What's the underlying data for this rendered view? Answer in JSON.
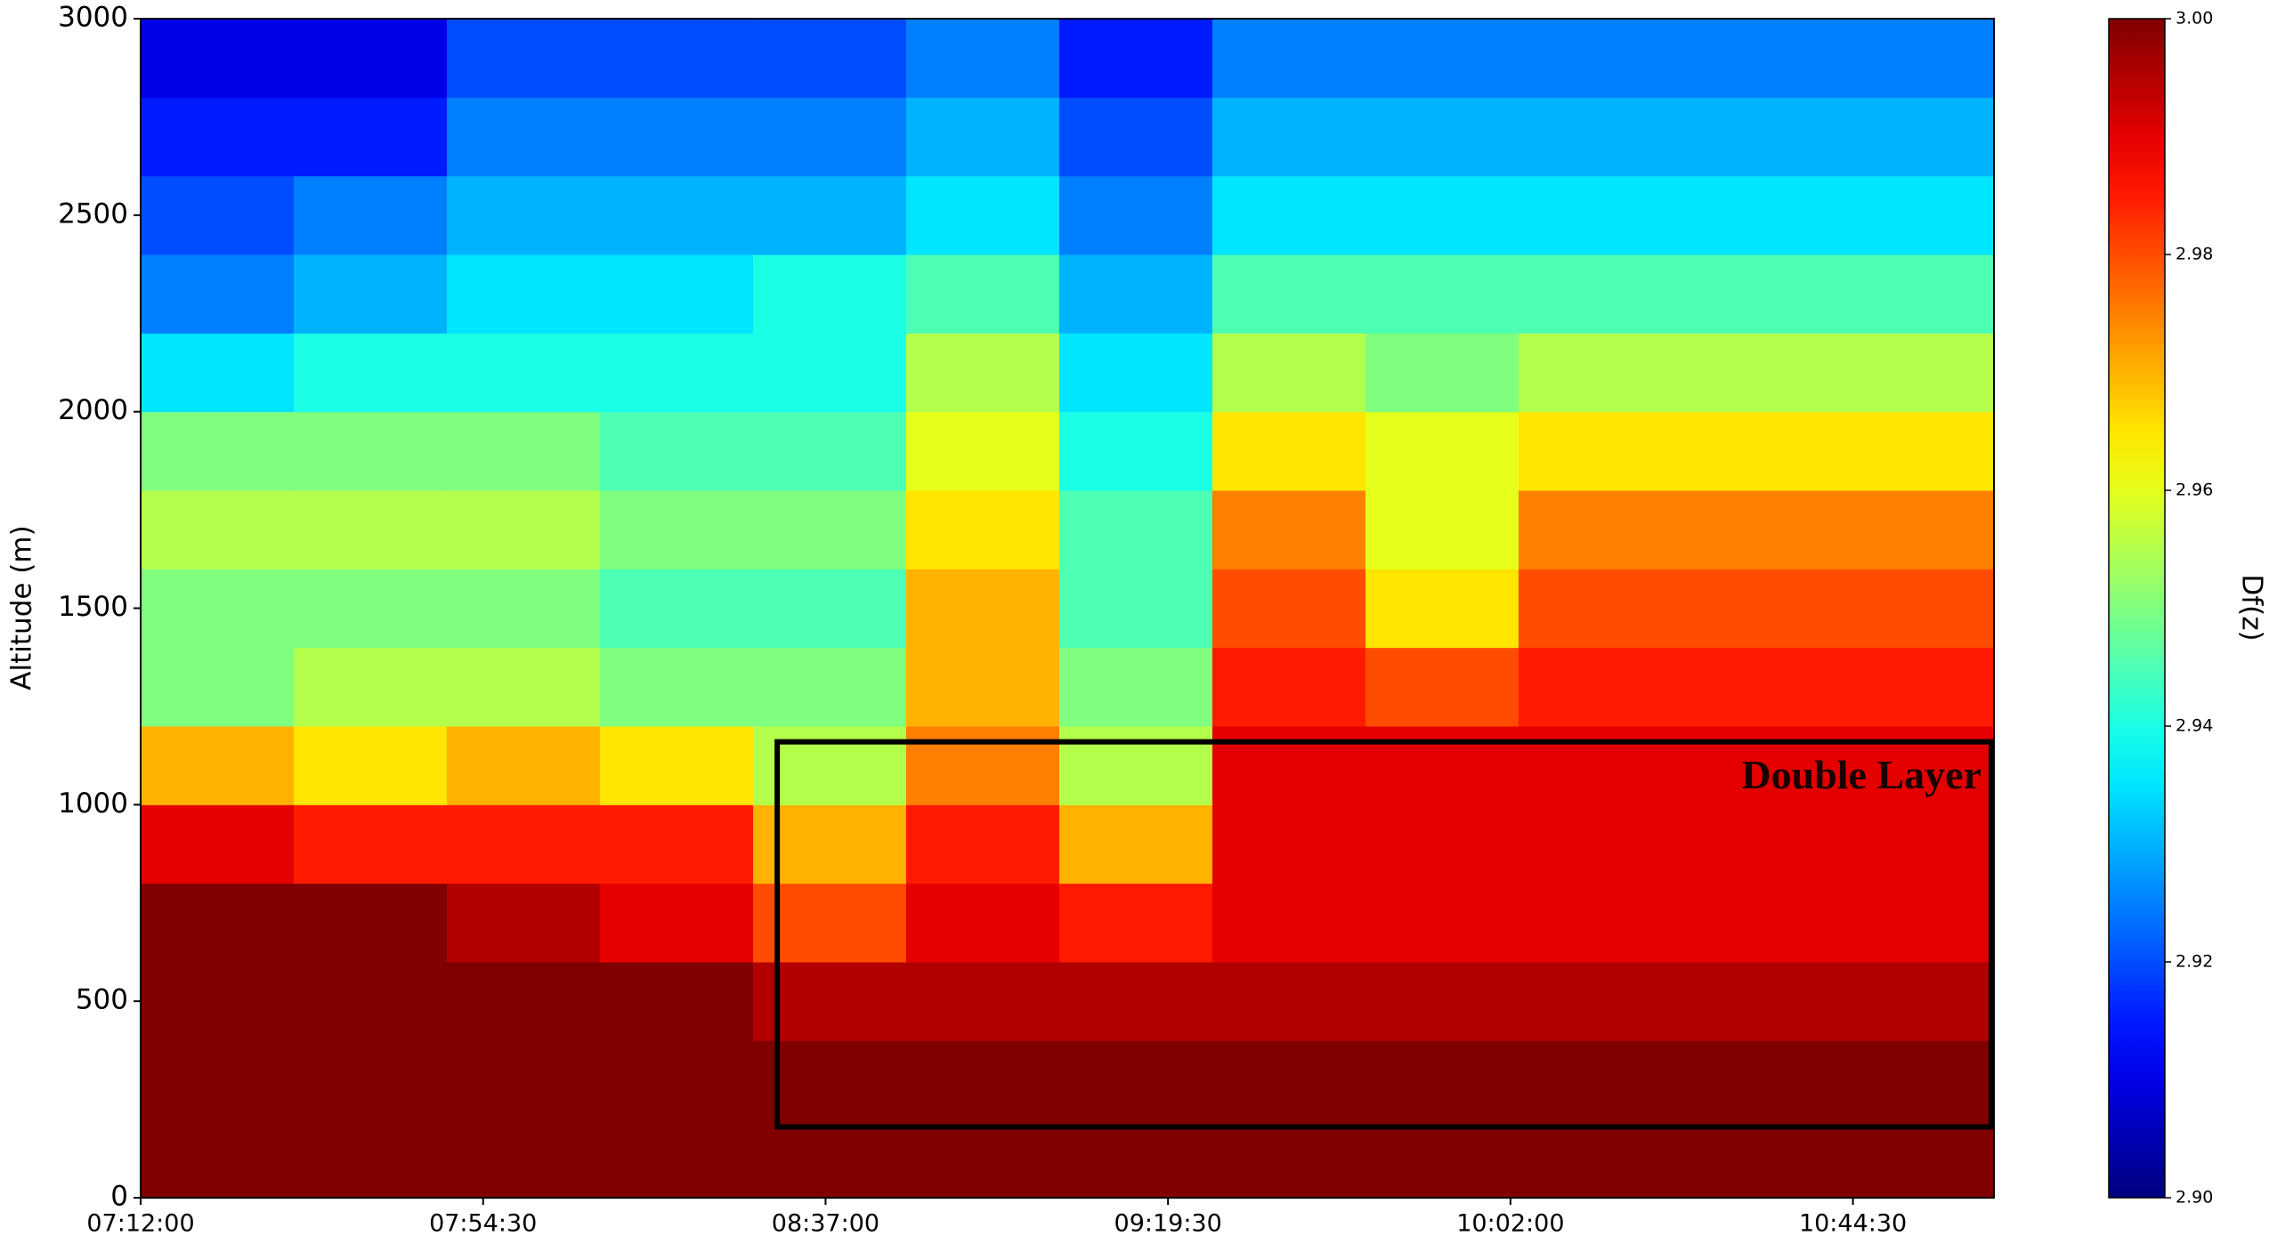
{
  "chart_data": {
    "type": "heatmap",
    "y_label": "Altitude (m)",
    "colorbar_label": "Df(z)",
    "annotation": "Double Layer",
    "box": {
      "x": [
        511,
        662
      ],
      "y": [
        180,
        1160
      ]
    },
    "colormap": "jet",
    "x": [
      432,
      451,
      470,
      489,
      508,
      527,
      546,
      565,
      584,
      603,
      622,
      641
    ],
    "y": [
      0,
      200,
      400,
      600,
      800,
      1000,
      1200,
      1400,
      1600,
      1800,
      2000,
      2200,
      2400,
      2600,
      2800
    ],
    "z": [
      [
        3.0,
        3.0,
        3.0,
        3.0,
        3.0,
        3.0,
        3.0,
        3.0,
        3.0,
        3.0,
        3.0,
        3.0
      ],
      [
        3.0,
        3.0,
        3.0,
        3.0,
        3.0,
        3.0,
        3.0,
        3.0,
        3.0,
        3.0,
        3.0,
        3.0
      ],
      [
        3.0,
        3.0,
        3.0,
        3.0,
        2.995,
        2.995,
        2.995,
        2.995,
        2.995,
        2.995,
        2.995,
        2.995
      ],
      [
        3.0,
        3.0,
        2.995,
        2.99,
        2.98,
        2.99,
        2.985,
        2.99,
        2.99,
        2.99,
        2.99,
        2.99
      ],
      [
        2.99,
        2.985,
        2.985,
        2.985,
        2.97,
        2.985,
        2.97,
        2.99,
        2.99,
        2.99,
        2.99,
        2.99
      ],
      [
        2.97,
        2.965,
        2.97,
        2.965,
        2.955,
        2.975,
        2.955,
        2.99,
        2.99,
        2.99,
        2.99,
        2.99
      ],
      [
        2.95,
        2.955,
        2.955,
        2.95,
        2.95,
        2.97,
        2.95,
        2.985,
        2.98,
        2.985,
        2.985,
        2.985
      ],
      [
        2.95,
        2.95,
        2.95,
        2.945,
        2.945,
        2.97,
        2.945,
        2.98,
        2.965,
        2.98,
        2.98,
        2.98
      ],
      [
        2.955,
        2.955,
        2.955,
        2.95,
        2.95,
        2.965,
        2.945,
        2.975,
        2.96,
        2.975,
        2.975,
        2.975
      ],
      [
        2.95,
        2.95,
        2.95,
        2.945,
        2.945,
        2.96,
        2.94,
        2.965,
        2.96,
        2.965,
        2.965,
        2.965
      ],
      [
        2.935,
        2.94,
        2.94,
        2.94,
        2.94,
        2.955,
        2.935,
        2.955,
        2.95,
        2.955,
        2.955,
        2.955
      ],
      [
        2.925,
        2.93,
        2.935,
        2.935,
        2.94,
        2.945,
        2.93,
        2.945,
        2.945,
        2.945,
        2.945,
        2.945
      ],
      [
        2.92,
        2.925,
        2.93,
        2.93,
        2.93,
        2.935,
        2.925,
        2.935,
        2.935,
        2.935,
        2.935,
        2.935
      ],
      [
        2.915,
        2.915,
        2.925,
        2.925,
        2.925,
        2.93,
        2.92,
        2.93,
        2.93,
        2.93,
        2.93,
        2.93
      ],
      [
        2.91,
        2.91,
        2.92,
        2.92,
        2.92,
        2.925,
        2.915,
        2.925,
        2.925,
        2.925,
        2.925,
        2.925
      ]
    ],
    "xlim": [
      432,
      662
    ],
    "xticks": [
      {
        "value": 432,
        "label": "07:12:00"
      },
      {
        "value": 474.5,
        "label": "07:54:30"
      },
      {
        "value": 517,
        "label": "08:37:00"
      },
      {
        "value": 559.5,
        "label": "09:19:30"
      },
      {
        "value": 602,
        "label": "10:02:00"
      },
      {
        "value": 644.5,
        "label": "10:44:30"
      }
    ],
    "ylim": [
      0,
      3000
    ],
    "yticks": [
      0,
      500,
      1000,
      1500,
      2000,
      2500,
      3000
    ],
    "zlim": [
      2.9,
      3.0
    ],
    "zticks": [
      {
        "value": 2.9,
        "label": "2.90"
      },
      2.92,
      2.94,
      2.96,
      2.98,
      {
        "value": 3.0,
        "label": "3.00"
      }
    ]
  }
}
